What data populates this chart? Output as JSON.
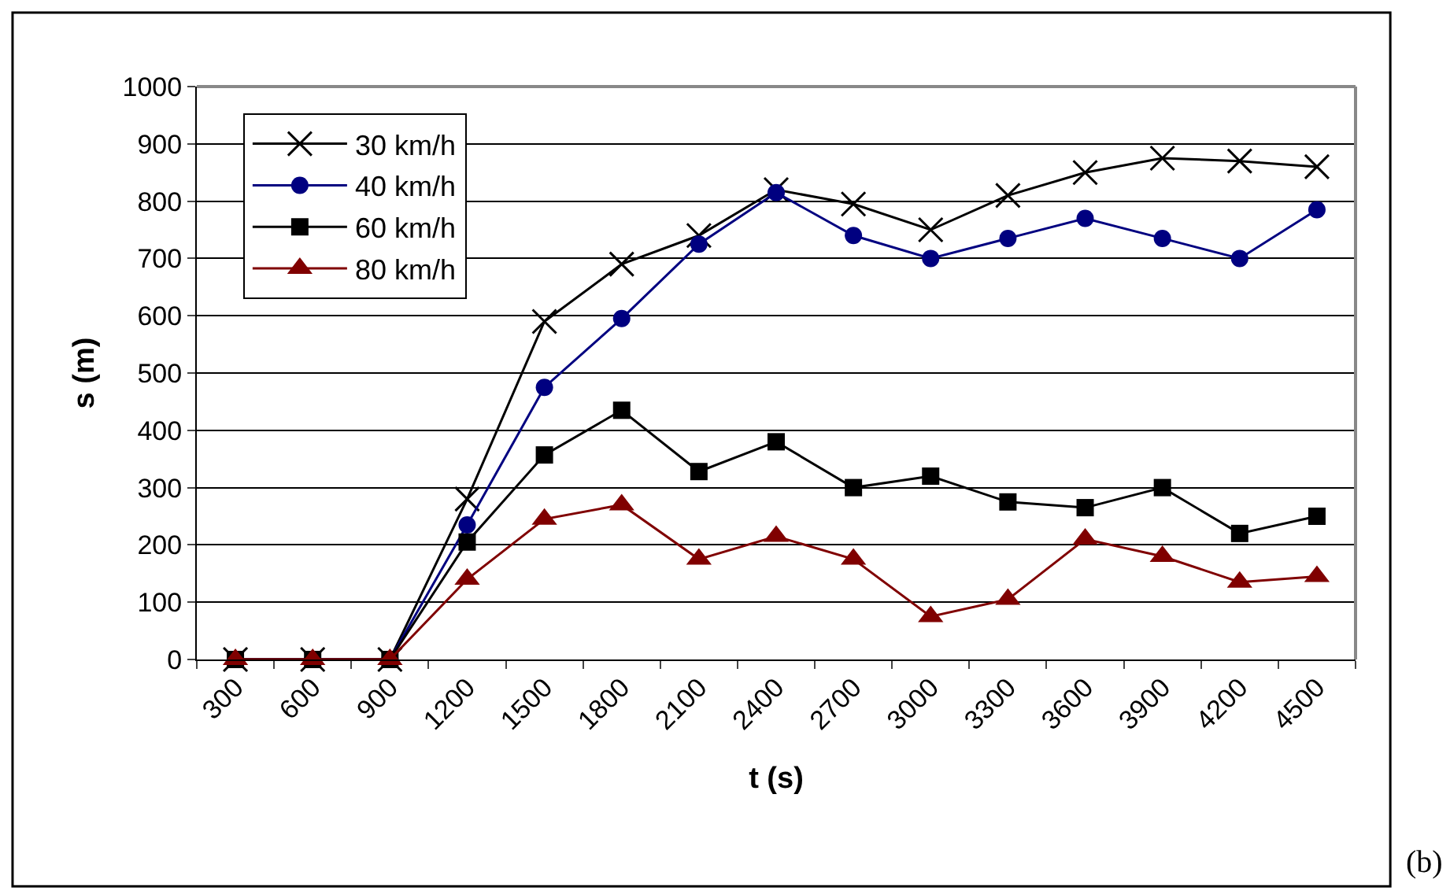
{
  "chart_data": {
    "type": "line",
    "xlabel": "t (s)",
    "ylabel": "s (m)",
    "categories": [
      "300",
      "600",
      "900",
      "1200",
      "1500",
      "1800",
      "2100",
      "2400",
      "2700",
      "3000",
      "3300",
      "3600",
      "3900",
      "4200",
      "4500"
    ],
    "series": [
      {
        "name": "30 km/h",
        "color": "#000000",
        "marker": "cross",
        "values": [
          0,
          0,
          0,
          280,
          590,
          690,
          740,
          820,
          795,
          750,
          810,
          850,
          875,
          870,
          860
        ]
      },
      {
        "name": "40 km/h",
        "color": "#000080",
        "marker": "circle",
        "values": [
          0,
          0,
          0,
          235,
          475,
          595,
          725,
          815,
          740,
          700,
          735,
          770,
          735,
          700,
          785
        ]
      },
      {
        "name": "60 km/h",
        "color": "#000000",
        "marker": "square",
        "values": [
          0,
          0,
          0,
          205,
          357,
          435,
          328,
          380,
          300,
          320,
          275,
          265,
          300,
          220,
          250
        ]
      },
      {
        "name": "80 km/h",
        "color": "#800000",
        "marker": "triangle",
        "values": [
          0,
          0,
          0,
          140,
          245,
          270,
          175,
          215,
          175,
          75,
          105,
          210,
          180,
          135,
          145
        ]
      }
    ],
    "ylim": [
      0,
      1000
    ],
    "yticks": [
      0,
      100,
      200,
      300,
      400,
      500,
      600,
      700,
      800,
      900,
      1000
    ],
    "grid": "y",
    "legend": "top left",
    "line_style": "solid",
    "annotations": [
      "(b)"
    ]
  }
}
